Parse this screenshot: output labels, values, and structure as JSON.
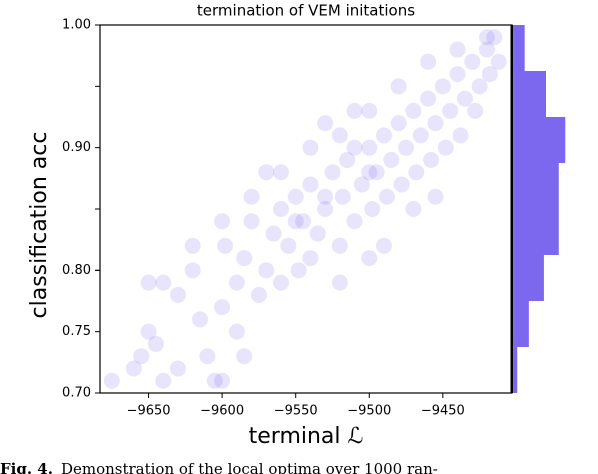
{
  "chart_data": {
    "type": "scatter",
    "title": "termination of VEM initations",
    "xlabel": "terminal ℒ",
    "ylabel": "classification acc",
    "color": "#7b68ee",
    "x": [
      -9675,
      -9660,
      -9655,
      -9650,
      -9645,
      -9640,
      -9650,
      -9640,
      -9630,
      -9620,
      -9615,
      -9610,
      -9605,
      -9600,
      -9598,
      -9590,
      -9585,
      -9580,
      -9575,
      -9570,
      -9565,
      -9560,
      -9555,
      -9550,
      -9548,
      -9545,
      -9540,
      -9535,
      -9530,
      -9525,
      -9520,
      -9518,
      -9515,
      -9510,
      -9505,
      -9500,
      -9498,
      -9495,
      -9490,
      -9488,
      -9485,
      -9480,
      -9478,
      -9475,
      -9470,
      -9468,
      -9465,
      -9460,
      -9458,
      -9455,
      -9450,
      -9448,
      -9445,
      -9440,
      -9438,
      -9435,
      -9430,
      -9428,
      -9425,
      -9420,
      -9418,
      -9415,
      -9412,
      -9420,
      -9440,
      -9460,
      -9480,
      -9500,
      -9520,
      -9540,
      -9560,
      -9580,
      -9600,
      -9620,
      -9540,
      -9560,
      -9520,
      -9500,
      -9490,
      -9590,
      -9630,
      -9600,
      -9585,
      -9570,
      -9530,
      -9510,
      -9470,
      -9455,
      -9500,
      -9510,
      -9530,
      -9550
    ],
    "y": [
      0.71,
      0.72,
      0.73,
      0.75,
      0.74,
      0.71,
      0.79,
      0.79,
      0.78,
      0.8,
      0.76,
      0.73,
      0.71,
      0.77,
      0.82,
      0.79,
      0.81,
      0.84,
      0.78,
      0.8,
      0.83,
      0.85,
      0.82,
      0.86,
      0.8,
      0.84,
      0.87,
      0.83,
      0.85,
      0.88,
      0.82,
      0.86,
      0.89,
      0.84,
      0.87,
      0.9,
      0.85,
      0.88,
      0.91,
      0.86,
      0.89,
      0.92,
      0.87,
      0.9,
      0.93,
      0.88,
      0.91,
      0.94,
      0.89,
      0.92,
      0.95,
      0.9,
      0.93,
      0.96,
      0.91,
      0.94,
      0.97,
      0.93,
      0.95,
      0.98,
      0.96,
      0.99,
      0.97,
      0.99,
      0.98,
      0.97,
      0.95,
      0.93,
      0.91,
      0.9,
      0.88,
      0.86,
      0.84,
      0.82,
      0.81,
      0.79,
      0.79,
      0.81,
      0.82,
      0.75,
      0.72,
      0.71,
      0.73,
      0.88,
      0.92,
      0.93,
      0.85,
      0.86,
      0.88,
      0.9,
      0.86,
      0.84
    ],
    "xlim": [
      -9683,
      -9403
    ],
    "ylim": [
      0.7,
      1.0
    ],
    "xticks": [
      {
        "value": -9650,
        "label": "−9650"
      },
      {
        "value": -9600,
        "label": "−9600"
      },
      {
        "value": -9550,
        "label": "−9550"
      },
      {
        "value": -9500,
        "label": "−9500"
      },
      {
        "value": -9450,
        "label": "−9450"
      }
    ],
    "yticks": [
      {
        "value": 0.7,
        "label": "0.70"
      },
      {
        "value": 0.75,
        "label": "0.75"
      },
      0.8,
      {
        "value": 0.8,
        "label": "0.80"
      },
      0.85,
      {
        "value": 0.9,
        "label": "0.90"
      },
      0.95,
      {
        "value": 1.0,
        "label": "1.00"
      }
    ],
    "marginal": {
      "bins": [
        0.7,
        0.7375,
        0.775,
        0.8125,
        0.85,
        0.8875,
        0.925,
        0.9625,
        1.0
      ],
      "counts": [
        14,
        64,
        129,
        193,
        193,
        221,
        138,
        46
      ],
      "xlim": [
        0,
        250
      ]
    }
  },
  "caption": {
    "label": "Fig. 4.",
    "text": "Demonstration of the local optima over 1000 ran-"
  }
}
